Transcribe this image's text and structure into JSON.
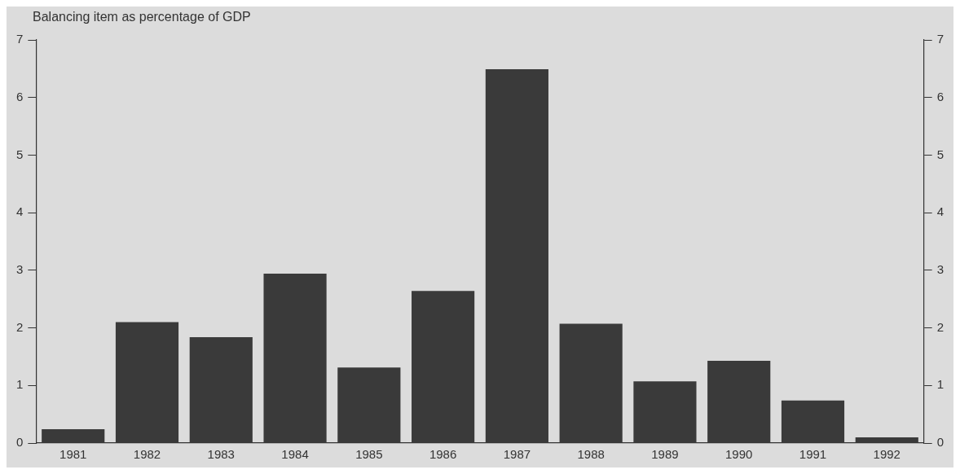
{
  "chart_data": {
    "type": "bar",
    "ylabel": "Balancing item as percentage of GDP",
    "categories": [
      "1981",
      "1982",
      "1983",
      "1984",
      "1985",
      "1986",
      "1987",
      "1988",
      "1989",
      "1990",
      "1991",
      "1992"
    ],
    "values": [
      0.24,
      2.1,
      1.84,
      2.94,
      1.31,
      2.64,
      6.49,
      2.07,
      1.07,
      1.43,
      0.74,
      0.1
    ],
    "color": "#3a3a3a",
    "ylim": [
      0,
      7
    ],
    "yticks": [
      0,
      1,
      2,
      3,
      4,
      5,
      6,
      7
    ],
    "y2lim": [
      0,
      7
    ],
    "y2ticks": [
      0,
      1,
      2,
      3,
      4,
      5,
      6,
      7
    ],
    "grid": false,
    "legend": false
  }
}
